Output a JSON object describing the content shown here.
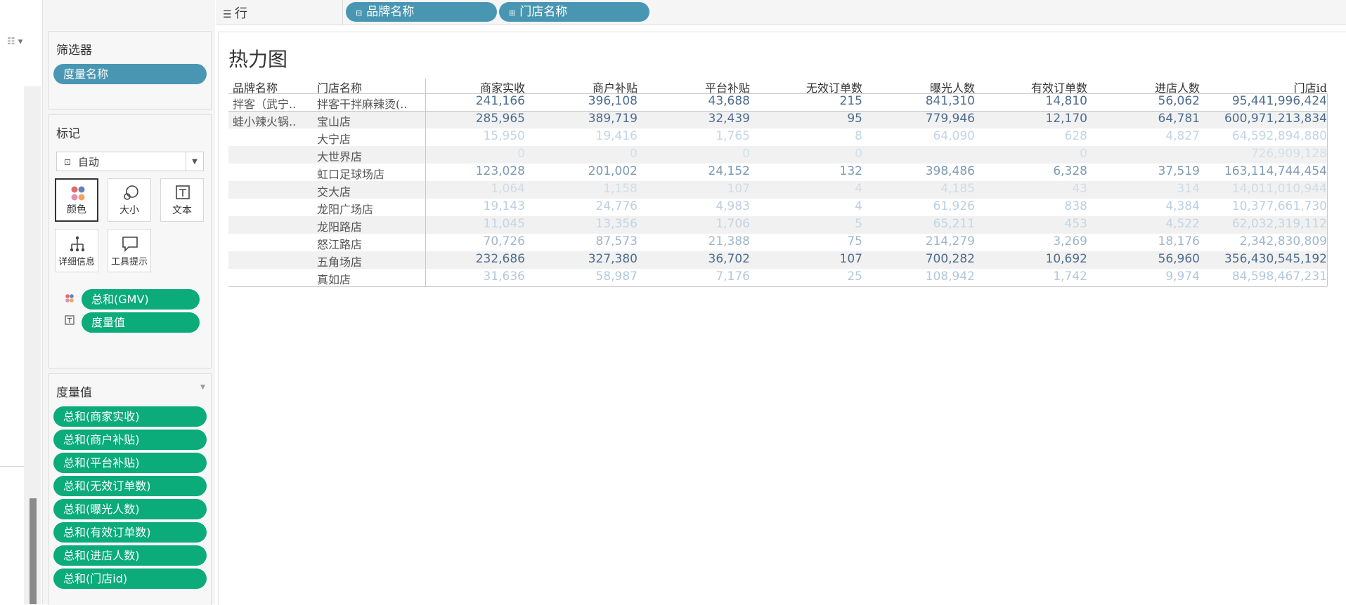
{
  "left_strip": {
    "view_icon": "view-toggle-icon"
  },
  "filters": {
    "title": "筛选器",
    "pills": [
      "度量名称"
    ]
  },
  "marks": {
    "title": "标记",
    "mark_type": "自动",
    "buttons": {
      "color": "颜色",
      "size": "大小",
      "text": "文本",
      "detail": "详细信息",
      "tooltip": "工具提示"
    },
    "fields": [
      {
        "icon": "color-mark-icon",
        "label": "总和(GMV)"
      },
      {
        "icon": "text-mark-icon",
        "label": "度量值"
      }
    ]
  },
  "measure_values": {
    "title": "度量值",
    "pills": [
      "总和(商家实收)",
      "总和(商户补贴)",
      "总和(平台补贴)",
      "总和(无效订单数)",
      "总和(曝光人数)",
      "总和(有效订单数)",
      "总和(进店人数)",
      "总和(门店id)"
    ]
  },
  "rows_shelf": {
    "label": "行",
    "pills": [
      "品牌名称",
      "门店名称"
    ]
  },
  "view": {
    "title": "热力图",
    "dim_headers": [
      "品牌名称",
      "门店名称"
    ],
    "measure_headers": [
      "商家实收",
      "商户补贴",
      "平台补贴",
      "无效订单数",
      "曝光人数",
      "有效订单数",
      "进店人数",
      "门店id"
    ],
    "brands": [
      {
        "label": "拌客（武宁..",
        "row_index": 0
      },
      {
        "label": "蛙小辣火锅..",
        "row_index": 1
      }
    ],
    "rows": [
      {
        "store": "拌客干拌麻辣烫(..",
        "values": [
          "241,166",
          "396,108",
          "43,688",
          "215",
          "841,310",
          "14,810",
          "56,062",
          "95,441,996,424"
        ],
        "colors": [
          "#4d6d8f",
          "#4d6d8f",
          "#4d6d8f",
          "#4d6d8f",
          "#4d6d8f",
          "#4d6d8f",
          "#4d6d8f",
          "#4d6d8f"
        ]
      },
      {
        "store": "宝山店",
        "values": [
          "285,965",
          "389,719",
          "32,439",
          "95",
          "779,946",
          "12,170",
          "64,781",
          "600,971,213,834"
        ],
        "colors": [
          "#4d6d8f",
          "#4d6d8f",
          "#4d6d8f",
          "#4d6d8f",
          "#4d6d8f",
          "#4d6d8f",
          "#4d6d8f",
          "#4d6d8f"
        ]
      },
      {
        "store": "大宁店",
        "values": [
          "15,950",
          "19,416",
          "1,765",
          "8",
          "64,090",
          "628",
          "4,827",
          "64,592,894,880"
        ],
        "colors": [
          "#c3d5e3",
          "#c3d5e3",
          "#c3d5e3",
          "#c3d5e3",
          "#c3d5e3",
          "#c3d5e3",
          "#c3d5e3",
          "#c3d5e3"
        ]
      },
      {
        "store": "大世界店",
        "values": [
          "0",
          "0",
          "0",
          "0",
          "",
          "0",
          "",
          "726,909,128"
        ],
        "colors": [
          "#d3e0ea",
          "#d3e0ea",
          "#d3e0ea",
          "#d3e0ea",
          "#d3e0ea",
          "#d3e0ea",
          "#d3e0ea",
          "#d3e0ea"
        ]
      },
      {
        "store": "虹口足球场店",
        "values": [
          "123,028",
          "201,002",
          "24,152",
          "132",
          "398,486",
          "6,328",
          "37,519",
          "163,114,744,454"
        ],
        "colors": [
          "#7d9ab5",
          "#7d9ab5",
          "#7d9ab5",
          "#7d9ab5",
          "#7d9ab5",
          "#7d9ab5",
          "#7d9ab5",
          "#7d9ab5"
        ]
      },
      {
        "store": "交大店",
        "values": [
          "1,064",
          "1,158",
          "107",
          "4",
          "4,185",
          "43",
          "314",
          "14,011,010,944"
        ],
        "colors": [
          "#cfdce7",
          "#cfdce7",
          "#cfdce7",
          "#cfdce7",
          "#cfdce7",
          "#cfdce7",
          "#cfdce7",
          "#cfdce7"
        ]
      },
      {
        "store": "龙阳广场店",
        "values": [
          "19,143",
          "24,776",
          "4,983",
          "4",
          "61,926",
          "838",
          "4,384",
          "10,377,661,730"
        ],
        "colors": [
          "#bccfe0",
          "#bccfe0",
          "#bccfe0",
          "#bccfe0",
          "#bccfe0",
          "#bccfe0",
          "#bccfe0",
          "#bccfe0"
        ]
      },
      {
        "store": "龙阳路店",
        "values": [
          "11,045",
          "13,356",
          "1,706",
          "5",
          "65,211",
          "453",
          "4,522",
          "62,032,319,112"
        ],
        "colors": [
          "#c3d5e3",
          "#c3d5e3",
          "#c3d5e3",
          "#c3d5e3",
          "#c3d5e3",
          "#c3d5e3",
          "#c3d5e3",
          "#c3d5e3"
        ]
      },
      {
        "store": "怒江路店",
        "values": [
          "70,726",
          "87,573",
          "21,388",
          "75",
          "214,279",
          "3,269",
          "18,176",
          "2,342,830,809"
        ],
        "colors": [
          "#9fb7cc",
          "#9fb7cc",
          "#9fb7cc",
          "#9fb7cc",
          "#9fb7cc",
          "#9fb7cc",
          "#9fb7cc",
          "#9fb7cc"
        ]
      },
      {
        "store": "五角场店",
        "values": [
          "232,686",
          "327,380",
          "36,702",
          "107",
          "700,282",
          "10,692",
          "56,960",
          "356,430,545,192"
        ],
        "colors": [
          "#4d6d8f",
          "#4d6d8f",
          "#4d6d8f",
          "#4d6d8f",
          "#4d6d8f",
          "#4d6d8f",
          "#4d6d8f",
          "#4d6d8f"
        ]
      },
      {
        "store": "真如店",
        "values": [
          "31,636",
          "58,987",
          "7,176",
          "25",
          "108,942",
          "1,742",
          "9,974",
          "84,598,467,231"
        ],
        "colors": [
          "#b3c8db",
          "#b3c8db",
          "#b3c8db",
          "#b3c8db",
          "#b3c8db",
          "#b3c8db",
          "#b3c8db",
          "#b3c8db"
        ]
      }
    ]
  }
}
